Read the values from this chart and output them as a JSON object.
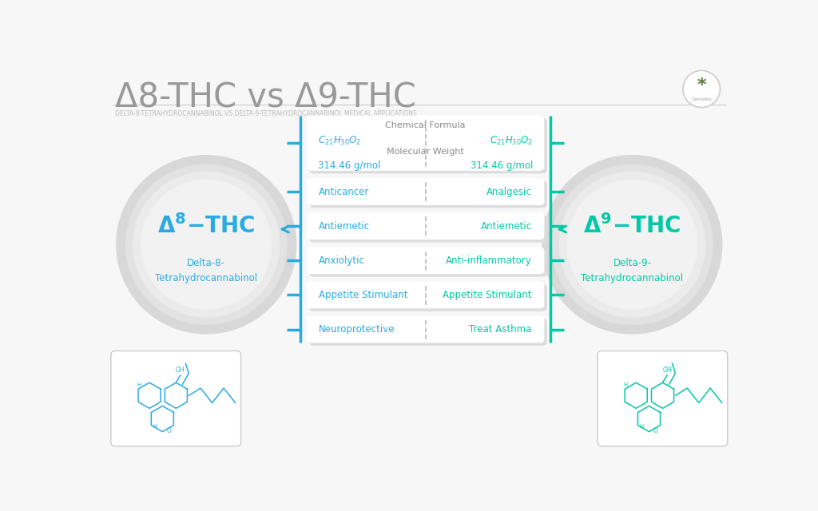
{
  "title": "Δ8-THC vs Δ9-THC",
  "subtitle": "DELTA-8-TETRAHYDROCANNABINOL VS DELTA-9-TETRAHYDROCANNABINOL MEDICAL APPLICATIONS",
  "left_sub": "Delta-8-\nTetrahydrocannabinol",
  "right_sub": "Delta-9-\nTetrahydrocannabinol",
  "left_color": "#29ABE2",
  "right_color": "#00C9A7",
  "title_color": "#999999",
  "subtitle_color": "#BBBBBB",
  "bg_color": "#F7F7F7",
  "chemical_formula_label": "Chemical Formula",
  "mol_weight_label": "Molecular Weight",
  "mol_weight_left": "314.46 g/mol",
  "mol_weight_right": "314.46 g/mol",
  "left_properties": [
    "Anticancer",
    "Antiemetic",
    "Anxiolytic",
    "Appetite Stimulant",
    "Neuroprotective"
  ],
  "right_properties": [
    "Analgesic",
    "Antiemetic",
    "Anti-inflammatory",
    "Appetite Stimulant",
    "Treat Asthma"
  ],
  "text_gray": "#888888",
  "dashed_color": "#BBBBBB",
  "box_bg": "#FFFFFF",
  "shadow_color": "#DDDDDD"
}
